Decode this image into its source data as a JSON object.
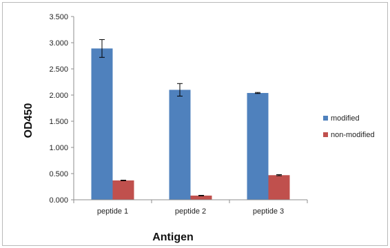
{
  "chart_data": {
    "type": "bar",
    "categories": [
      "peptide 1",
      "peptide 2",
      "peptide 3"
    ],
    "series": [
      {
        "name": "modified",
        "color": "#4f81bd",
        "values": [
          2.89,
          2.1,
          2.04
        ],
        "errors": [
          0.17,
          0.12,
          0.01
        ]
      },
      {
        "name": "non-modified",
        "color": "#c0504d",
        "values": [
          0.37,
          0.08,
          0.47
        ],
        "errors": [
          0.005,
          0.005,
          0.01
        ]
      }
    ],
    "xlabel": "Antigen",
    "ylabel": "OD450",
    "ylim": [
      0,
      3.5
    ],
    "yticks": [
      "0.000",
      "0.500",
      "1.000",
      "1.500",
      "2.000",
      "2.500",
      "3.000",
      "3.500"
    ],
    "grid": false,
    "legend": "right"
  }
}
